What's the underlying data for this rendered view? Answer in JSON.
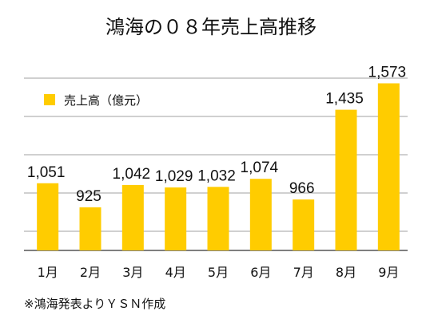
{
  "chart_data": {
    "type": "bar",
    "title": "鴻海の０８年売上高推移",
    "categories": [
      "1月",
      "2月",
      "3月",
      "4月",
      "5月",
      "6月",
      "7月",
      "8月",
      "9月"
    ],
    "series": [
      {
        "name": "売上高（億元）",
        "values": [
          1051,
          925,
          1042,
          1029,
          1032,
          1074,
          966,
          1435,
          1573
        ],
        "color": "#FFCC00"
      }
    ],
    "data_labels": [
      "1,051",
      "925",
      "1,042",
      "1,029",
      "1,032",
      "1,074",
      "966",
      "1,435",
      "1,573"
    ],
    "ylim": [
      700,
      1600
    ],
    "gridlines": [
      800,
      1000,
      1200,
      1400,
      1600
    ],
    "grid": true,
    "legend_position": "top-left",
    "xlabel": "",
    "ylabel": ""
  },
  "footer": {
    "source": "※鴻海発表よりＹＳＮ作成"
  }
}
